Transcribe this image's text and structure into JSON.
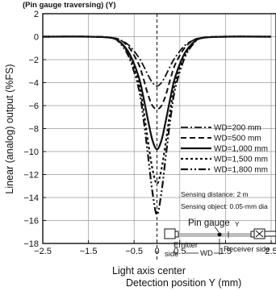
{
  "chart_data": {
    "type": "line",
    "title": "",
    "header_fragment": "(Pin gauge traversing) (Y)",
    "xlabel": "Detection position Y (mm)",
    "ylabel": "Linear (analog) output (%FS)",
    "center_label": "Light axis center",
    "xlim": [
      -2.5,
      2.5
    ],
    "ylim": [
      -18,
      2
    ],
    "x_ticks": [
      -2.5,
      -1.5,
      -0.5,
      0,
      0.5,
      1.5,
      2.5
    ],
    "x_tick_labels": [
      "−2.5",
      "−1.5",
      "−0.5",
      "0",
      "0.5",
      "1.5",
      "2.5"
    ],
    "y_ticks": [
      2,
      0,
      -2,
      -4,
      -6,
      -8,
      -10,
      -12,
      -14,
      -16,
      -18
    ],
    "y_tick_labels": [
      "2",
      "0",
      "−2",
      "−4",
      "−6",
      "−8",
      "−10",
      "−12",
      "−14",
      "−16",
      "−18"
    ],
    "grid": true,
    "legend_position": "right-middle",
    "series": [
      {
        "name": "WD=200 mm",
        "dash": "dashdot",
        "x": [
          -2.5,
          -1.5,
          -1.0,
          -0.8,
          -0.6,
          -0.4,
          -0.3,
          -0.2,
          -0.1,
          0,
          0.1,
          0.2,
          0.3,
          0.4,
          0.6,
          0.8,
          1.0,
          1.5,
          2.5
        ],
        "y": [
          0,
          0,
          -0.1,
          -0.3,
          -0.8,
          -1.8,
          -2.5,
          -3.3,
          -4.0,
          -4.3,
          -4.0,
          -3.3,
          -2.5,
          -1.8,
          -0.8,
          -0.3,
          -0.1,
          0,
          0
        ]
      },
      {
        "name": "WD=500 mm",
        "dash": "dashed",
        "x": [
          -2.5,
          -1.5,
          -1.0,
          -0.8,
          -0.6,
          -0.4,
          -0.3,
          -0.2,
          -0.1,
          0,
          0.1,
          0.2,
          0.3,
          0.4,
          0.6,
          0.8,
          1.0,
          1.5,
          2.5
        ],
        "y": [
          0,
          0,
          -0.1,
          -0.3,
          -1.0,
          -2.4,
          -3.6,
          -5.0,
          -6.0,
          -6.3,
          -6.0,
          -5.0,
          -3.6,
          -2.4,
          -1.0,
          -0.3,
          -0.1,
          0,
          0
        ]
      },
      {
        "name": "WD=1,000 mm",
        "dash": "solid",
        "x": [
          -2.5,
          -1.5,
          -1.0,
          -0.8,
          -0.6,
          -0.4,
          -0.3,
          -0.2,
          -0.1,
          0,
          0.1,
          0.2,
          0.3,
          0.4,
          0.6,
          0.8,
          1.0,
          1.5,
          2.5
        ],
        "y": [
          0,
          0,
          -0.1,
          -0.5,
          -1.5,
          -3.5,
          -5.2,
          -7.2,
          -9.0,
          -9.8,
          -9.0,
          -7.2,
          -5.2,
          -3.5,
          -1.5,
          -0.5,
          -0.1,
          0,
          0
        ]
      },
      {
        "name": "WD=1,500 mm",
        "dash": "dotted",
        "x": [
          -2.5,
          -1.5,
          -1.0,
          -0.8,
          -0.6,
          -0.4,
          -0.3,
          -0.2,
          -0.1,
          0,
          0.1,
          0.2,
          0.3,
          0.4,
          0.6,
          0.8,
          1.0,
          1.5,
          2.5
        ],
        "y": [
          0,
          0,
          -0.1,
          -0.5,
          -1.7,
          -4.0,
          -6.2,
          -9.0,
          -11.5,
          -12.8,
          -11.5,
          -9.0,
          -6.2,
          -4.0,
          -1.7,
          -0.5,
          -0.1,
          0,
          0
        ]
      },
      {
        "name": "WD=1,800 mm",
        "dash": "dashdotdot",
        "x": [
          -2.5,
          -1.5,
          -1.0,
          -0.8,
          -0.6,
          -0.4,
          -0.3,
          -0.2,
          -0.1,
          0,
          0.1,
          0.2,
          0.3,
          0.4,
          0.6,
          0.8,
          1.0,
          1.5,
          2.5
        ],
        "y": [
          0,
          0,
          -0.1,
          -0.6,
          -1.9,
          -4.5,
          -7.0,
          -10.2,
          -13.5,
          -15.5,
          -13.5,
          -10.2,
          -7.0,
          -4.5,
          -1.9,
          -0.6,
          -0.1,
          0,
          0
        ]
      }
    ],
    "notes": [
      "Sensing distance: 2 m",
      "Sensing object: 0.05-mm dia"
    ],
    "diagram": {
      "pin_gauge": "Pin gauge",
      "y_mark": "Y",
      "emitter": "Emitter side",
      "emitter_line1": "Emitter",
      "emitter_line2": "side",
      "wd": "WD",
      "receiver": "Receiver side"
    },
    "colors": {
      "line": "#111111",
      "grid": "#9a9a9a",
      "background": "#ffffff"
    }
  }
}
